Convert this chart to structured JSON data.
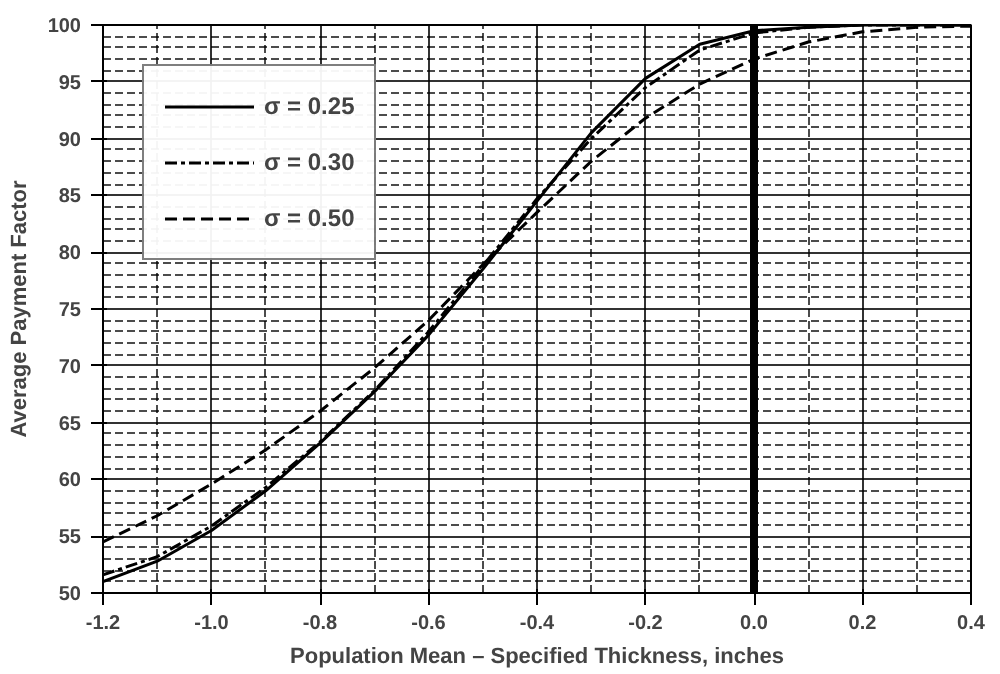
{
  "chart_data": {
    "type": "line",
    "xlabel": "Population Mean – Specified Thickness, inches",
    "ylabel": "Average Payment Factor",
    "x": [
      -1.2,
      -1.1,
      -1.0,
      -0.9,
      -0.8,
      -0.7,
      -0.6,
      -0.5,
      -0.4,
      -0.3,
      -0.2,
      -0.1,
      0.0,
      0.1,
      0.2,
      0.3,
      0.4
    ],
    "series": [
      {
        "name": "σ = 0.25",
        "color": "#000000",
        "line_style": "solid",
        "values": [
          51,
          52.8,
          55.5,
          59,
          63.2,
          67.7,
          72.7,
          78.5,
          84.5,
          90.5,
          95.3,
          98.3,
          99.5,
          99.8,
          100,
          100,
          100
        ]
      },
      {
        "name": "σ = 0.30",
        "color": "#000000",
        "line_style": "dashdot",
        "values": [
          51.6,
          53.2,
          55.9,
          59.3,
          63.3,
          67.8,
          73,
          78.8,
          84.7,
          90,
          94.5,
          97.8,
          99.3,
          99.8,
          100,
          100,
          100
        ]
      },
      {
        "name": "σ = 0.50",
        "color": "#000000",
        "line_style": "dashed",
        "values": [
          54.5,
          56.8,
          59.6,
          62.6,
          66,
          69.8,
          74,
          78.9,
          83.5,
          88,
          91.8,
          94.8,
          97,
          98.5,
          99.4,
          99.8,
          99.9
        ]
      }
    ],
    "xlim": [
      -1.2,
      0.4
    ],
    "ylim": [
      50,
      100
    ],
    "xticks": [
      -1.2,
      {
        "value": -1.0,
        "label": "-1.0"
      },
      -0.8,
      -0.6,
      -0.4,
      -0.2,
      {
        "value": 0.0,
        "label": "0.0"
      },
      0.2,
      0.4
    ],
    "yticks": [
      50,
      55,
      60,
      65,
      70,
      75,
      80,
      85,
      90,
      95,
      100
    ],
    "ref_lines": [
      {
        "axis": "x",
        "value": 0.0,
        "color": "#000000"
      }
    ],
    "grid": true,
    "legend": "top left"
  }
}
